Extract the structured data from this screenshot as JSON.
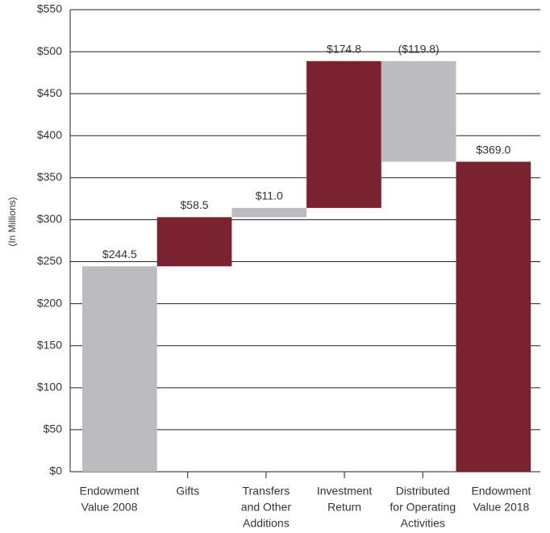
{
  "chart_data": {
    "type": "waterfall",
    "y_axis_label": "(In Millions)",
    "categories": [
      [
        "Endowment",
        "Value 2008"
      ],
      [
        "Gifts"
      ],
      [
        "Transfers",
        "and Other",
        "Additions"
      ],
      [
        "Investment",
        "Return"
      ],
      [
        "Distributed",
        "for Operating",
        "Activities"
      ],
      [
        "Endowment",
        "Value 2018"
      ]
    ],
    "values": [
      244.5,
      58.5,
      11.0,
      174.8,
      -119.8,
      369.0
    ],
    "value_labels": [
      "$244.5",
      "$58.5",
      "$11.0",
      "$174.8",
      "($119.8)",
      "$369.0"
    ],
    "colors": [
      "#bcbcc0",
      "#7b2230",
      "#bcbcc0",
      "#7b2230",
      "#bcbcc0",
      "#7b2230"
    ],
    "ylim": [
      0,
      550
    ],
    "yticks": [
      {
        "value": 0,
        "label": "$0"
      },
      {
        "value": 50,
        "label": "$50"
      },
      {
        "value": 100,
        "label": "$100"
      },
      {
        "value": 150,
        "label": "$150"
      },
      {
        "value": 200,
        "label": "$200"
      },
      {
        "value": 250,
        "label": "$250"
      },
      {
        "value": 300,
        "label": "$300"
      },
      {
        "value": 350,
        "label": "$350"
      },
      {
        "value": 400,
        "label": "$400"
      },
      {
        "value": 450,
        "label": "$450"
      },
      {
        "value": 500,
        "label": "$500"
      },
      {
        "value": 550,
        "label": "$550"
      }
    ],
    "grid": true
  }
}
